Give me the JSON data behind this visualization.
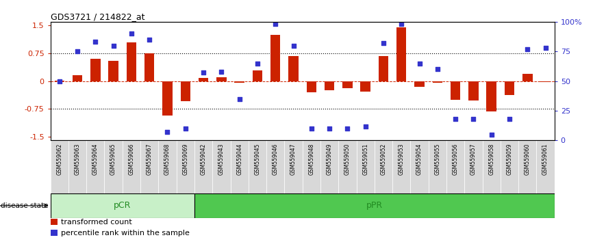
{
  "title": "GDS3721 / 214822_at",
  "samples": [
    "GSM559062",
    "GSM559063",
    "GSM559064",
    "GSM559065",
    "GSM559066",
    "GSM559067",
    "GSM559068",
    "GSM559069",
    "GSM559042",
    "GSM559043",
    "GSM559044",
    "GSM559045",
    "GSM559046",
    "GSM559047",
    "GSM559048",
    "GSM559049",
    "GSM559050",
    "GSM559051",
    "GSM559052",
    "GSM559053",
    "GSM559054",
    "GSM559055",
    "GSM559056",
    "GSM559057",
    "GSM559058",
    "GSM559059",
    "GSM559060",
    "GSM559061"
  ],
  "bar_values": [
    0.02,
    0.15,
    0.6,
    0.55,
    1.05,
    0.75,
    -0.93,
    -0.55,
    0.08,
    0.1,
    -0.05,
    0.28,
    1.25,
    0.68,
    -0.3,
    -0.25,
    -0.2,
    -0.28,
    0.68,
    1.45,
    -0.15,
    -0.05,
    -0.5,
    -0.52,
    -0.82,
    -0.38,
    0.2,
    -0.03
  ],
  "percentile_values": [
    50,
    75,
    83,
    80,
    90,
    85,
    7,
    10,
    57,
    58,
    35,
    65,
    98,
    80,
    10,
    10,
    10,
    12,
    82,
    98,
    65,
    60,
    18,
    18,
    5,
    18,
    77,
    78
  ],
  "group1_label": "pCR",
  "group2_label": "pPR",
  "group1_count": 8,
  "group2_count": 20,
  "group1_color": "#C8F0C8",
  "group2_color": "#50C850",
  "bar_color": "#CC2200",
  "dot_color": "#3333CC",
  "ylim": [
    -1.6,
    1.6
  ],
  "right_ylim": [
    0,
    100
  ],
  "right_yticks": [
    0,
    25,
    50,
    75,
    100
  ],
  "right_yticklabels": [
    "0",
    "25",
    "50",
    "75",
    "100%"
  ],
  "yticks": [
    -1.5,
    -0.75,
    0.0,
    0.75,
    1.5
  ],
  "yticklabels": [
    "-1.5",
    "-0.75",
    "0",
    "0.75",
    "1.5"
  ],
  "disease_state_label": "disease state",
  "legend_bar": "transformed count",
  "legend_dot": "percentile rank within the sample",
  "background_color": "#ffffff",
  "xlabel_bg": "#D8D8D8",
  "bar_width": 0.55
}
